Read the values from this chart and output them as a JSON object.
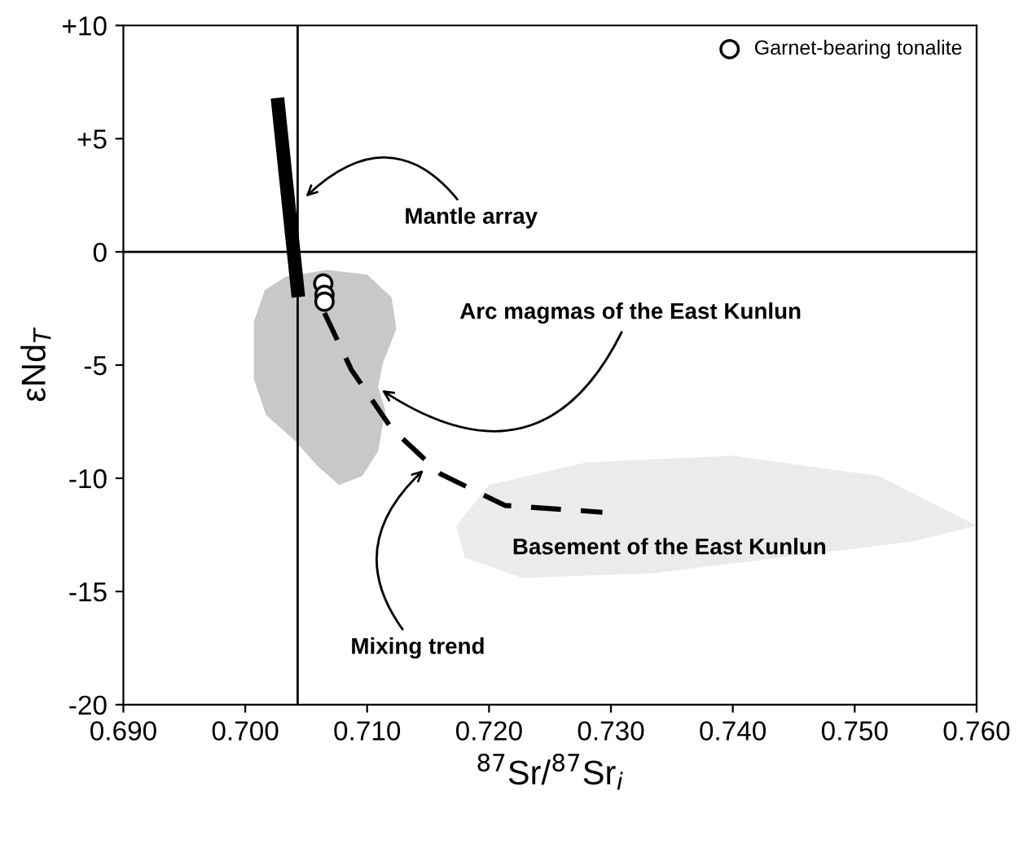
{
  "chart_data": {
    "type": "scatter",
    "xlabel": "$^{87}$Sr/$^{87}$Sr$_{i}$",
    "ylabel": "εNd$_{T}$",
    "xlim": [
      0.69,
      0.76
    ],
    "ylim": [
      -20,
      10
    ],
    "xticks": [
      {
        "value": 0.69,
        "label": "0.690"
      },
      {
        "value": 0.7,
        "label": "0.700"
      },
      {
        "value": 0.71,
        "label": "0.710"
      },
      {
        "value": 0.72,
        "label": "0.720"
      },
      {
        "value": 0.73,
        "label": "0.730"
      },
      {
        "value": 0.74,
        "label": "0.740"
      },
      {
        "value": 0.75,
        "label": "0.750"
      },
      {
        "value": 0.76,
        "label": "0.760"
      }
    ],
    "yticks": [
      -20,
      -15,
      -10,
      -5,
      0,
      {
        "value": 5,
        "label": "+5"
      },
      {
        "value": 10,
        "label": "+10"
      }
    ],
    "grid": false,
    "legend": "top right",
    "ref_lines": [
      {
        "axis": "x",
        "value": 0.7043,
        "color": "#000000"
      },
      {
        "axis": "y",
        "value": 0,
        "color": "#000000"
      }
    ],
    "series": [
      {
        "type": "area",
        "color": "#ebebeb",
        "x": [
          0.7173,
          0.72,
          0.728,
          0.74,
          0.752,
          0.76,
          0.7547,
          0.744,
          0.7333,
          0.7227,
          0.718
        ],
        "values": [
          -12.1,
          -10.3,
          -9.3,
          -9.0,
          -9.9,
          -12.1,
          -12.8,
          -13.5,
          -14.2,
          -14.4,
          -13.5
        ]
      },
      {
        "type": "area",
        "color": "#c8c8c8",
        "x": [
          0.7033,
          0.7067,
          0.71,
          0.712,
          0.7124,
          0.7113,
          0.7109,
          0.7115,
          0.7109,
          0.7096,
          0.7077,
          0.706,
          0.704,
          0.7017,
          0.7007,
          0.7007,
          0.7016
        ],
        "values": [
          -1.1,
          -0.8,
          -1.0,
          -2.0,
          -3.4,
          -4.9,
          -6.0,
          -7.0,
          -8.8,
          -9.9,
          -10.3,
          -9.5,
          -8.3,
          -7.2,
          -5.6,
          -3.1,
          -1.7
        ]
      },
      {
        "type": "line",
        "color": "#000000",
        "line_style": "solid",
        "x": [
          0.7027,
          0.7043
        ],
        "values": [
          6.5,
          -1.7
        ]
      },
      {
        "type": "line",
        "color": "#000000",
        "line_style": "dashed",
        "x": [
          0.7065,
          0.7087,
          0.712,
          0.716,
          0.7213,
          0.7293
        ],
        "values": [
          -2.7,
          -5.2,
          -7.8,
          -9.8,
          -11.2,
          -11.5
        ]
      },
      {
        "name": "Garnet-bearing tonalite",
        "color": "#ffffff",
        "marker": "circle",
        "x": [
          0.7064,
          0.7065,
          0.7065
        ],
        "values": [
          -1.4,
          -1.9,
          -2.2
        ]
      }
    ],
    "annotations": [
      {
        "text": "Mantle array",
        "x": 0.7047,
        "y": 2.3
      },
      {
        "text": "Arc magmas of the East Kunlun",
        "x": 0.7109,
        "y": -6.0
      },
      {
        "text": "Mixing trend",
        "x": 0.7149,
        "y": -9.5
      },
      "Basement of the East Kunlun"
    ]
  }
}
